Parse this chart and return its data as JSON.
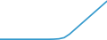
{
  "x": [
    0,
    1,
    2,
    3,
    4,
    5,
    6,
    7,
    8,
    9,
    10,
    11,
    12,
    13,
    14,
    15,
    16,
    17,
    18,
    19,
    20
  ],
  "y": [
    0.3,
    0.3,
    0.3,
    0.3,
    0.3,
    0.3,
    0.3,
    0.3,
    0.3,
    0.3,
    0.35,
    0.5,
    1.0,
    2.5,
    4.5,
    6.5,
    8.5,
    10.5,
    12.5,
    14.5,
    16.5
  ],
  "line_color": "#3399cc",
  "line_width": 1.2,
  "background_color": "#ffffff",
  "xlim": [
    0,
    20
  ],
  "ylim": [
    0,
    17
  ]
}
